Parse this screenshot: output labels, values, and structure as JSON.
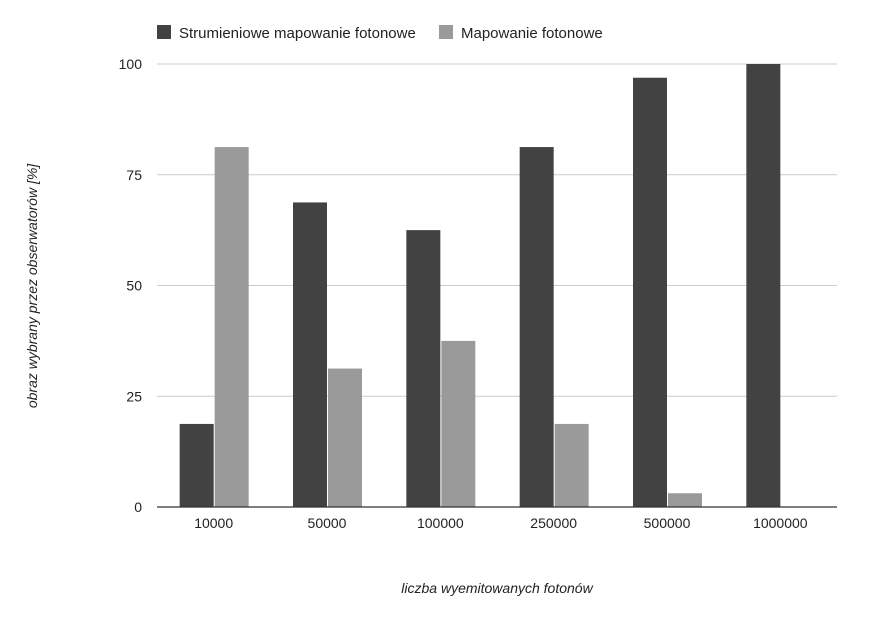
{
  "chart_data": {
    "type": "bar",
    "title": "",
    "xlabel": "liczba wyemitowanych fotonów",
    "ylabel": "obraz wybrany przez obserwatorów [%]",
    "categories": [
      "10000",
      "50000",
      "100000",
      "250000",
      "500000",
      "1000000"
    ],
    "series": [
      {
        "name": "Strumieniowe mapowanie fotonowe",
        "color": "#424242",
        "values": [
          18.75,
          68.75,
          62.5,
          81.25,
          96.9,
          100
        ]
      },
      {
        "name": "Mapowanie fotonowe",
        "color": "#9a9a9a",
        "values": [
          81.25,
          31.25,
          37.5,
          18.75,
          3.1,
          0
        ]
      }
    ],
    "ylim": [
      0,
      100
    ],
    "yticks": [
      "0",
      "25",
      "50",
      "75",
      "100"
    ],
    "grid": true,
    "legend_position": "top-left"
  }
}
